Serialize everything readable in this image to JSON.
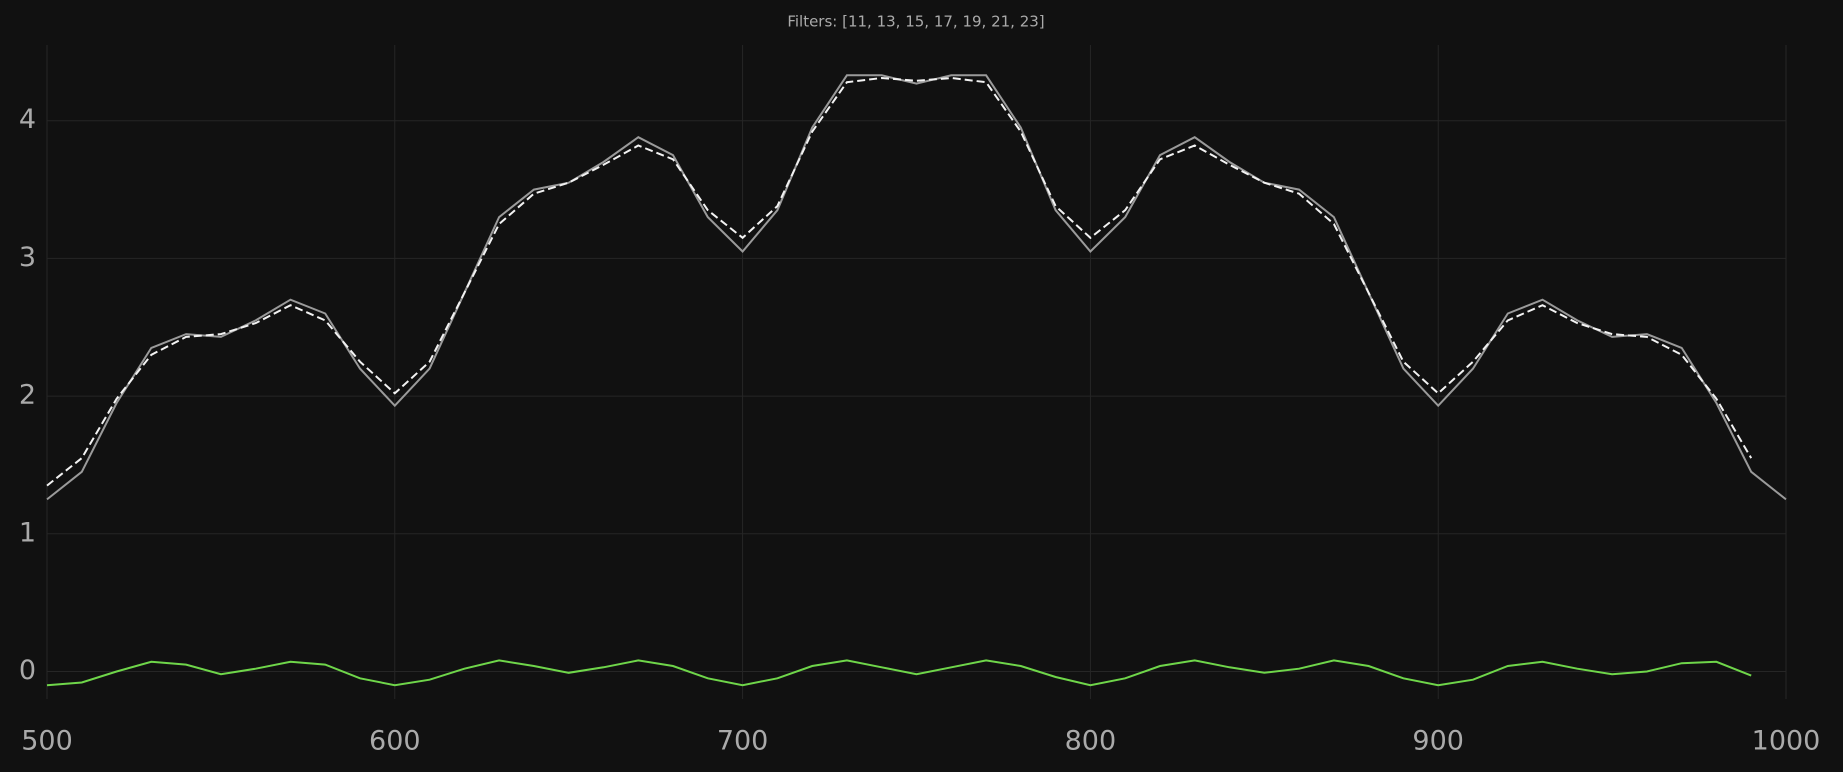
{
  "chart_data": {
    "type": "line",
    "title": "Filters: [11, 13, 15, 17, 19, 21, 23]",
    "x": [
      500,
      510,
      520,
      530,
      540,
      550,
      560,
      570,
      580,
      590,
      600,
      610,
      620,
      630,
      640,
      650,
      660,
      670,
      680,
      690,
      700,
      710,
      720,
      730,
      740,
      750,
      760,
      770,
      780,
      790,
      800,
      810,
      820,
      830,
      840,
      850,
      860,
      870,
      880,
      890,
      900,
      910,
      920,
      930,
      940,
      950,
      960,
      970,
      980,
      990,
      1000
    ],
    "series": [
      {
        "color": "#9a9a9a",
        "dashed": false,
        "values": [
          1.25,
          1.45,
          1.95,
          2.35,
          2.45,
          2.43,
          2.55,
          2.7,
          2.6,
          2.2,
          1.93,
          2.2,
          2.75,
          3.3,
          3.5,
          3.55,
          3.7,
          3.88,
          3.75,
          3.3,
          3.05,
          3.35,
          3.95,
          4.33,
          4.33,
          4.27,
          4.33,
          4.33,
          3.95,
          3.35,
          3.05,
          3.3,
          3.75,
          3.88,
          3.7,
          3.55,
          3.5,
          3.3,
          2.75,
          2.2,
          1.93,
          2.2,
          2.6,
          2.7,
          2.55,
          2.43,
          2.45,
          2.35,
          1.95,
          1.45,
          1.25
        ]
      },
      {
        "color": "#f2f2f2",
        "dashed": true,
        "values": [
          1.35,
          1.55,
          1.98,
          2.3,
          2.43,
          2.45,
          2.53,
          2.66,
          2.55,
          2.25,
          2.02,
          2.25,
          2.75,
          3.25,
          3.47,
          3.55,
          3.68,
          3.82,
          3.72,
          3.35,
          3.15,
          3.38,
          3.92,
          4.28,
          4.31,
          4.29,
          4.31,
          4.28,
          3.92,
          3.38,
          3.15,
          3.35,
          3.72,
          3.82,
          3.68,
          3.55,
          3.47,
          3.25,
          2.75,
          2.25,
          2.02,
          2.25,
          2.55,
          2.66,
          2.53,
          2.45,
          2.43,
          2.3,
          1.98,
          1.55,
          null
        ]
      },
      {
        "color": "#6fd64a",
        "dashed": false,
        "values": [
          -0.1,
          -0.08,
          0.0,
          0.07,
          0.05,
          -0.02,
          0.02,
          0.07,
          0.05,
          -0.05,
          -0.1,
          -0.06,
          0.02,
          0.08,
          0.04,
          -0.01,
          0.03,
          0.08,
          0.04,
          -0.05,
          -0.1,
          -0.05,
          0.04,
          0.08,
          0.03,
          -0.02,
          0.03,
          0.08,
          0.04,
          -0.04,
          -0.1,
          -0.05,
          0.04,
          0.08,
          0.03,
          -0.01,
          0.02,
          0.08,
          0.04,
          -0.05,
          -0.1,
          -0.06,
          0.04,
          0.07,
          0.02,
          -0.02,
          0.0,
          0.06,
          0.07,
          -0.03,
          null
        ]
      }
    ],
    "xlim": [
      500,
      1000
    ],
    "xticks": [
      500,
      600,
      700,
      800,
      900,
      1000
    ],
    "ylim": [
      -0.2,
      4.55
    ],
    "yticks": [
      0,
      1,
      2,
      3,
      4
    ],
    "grid": true
  }
}
